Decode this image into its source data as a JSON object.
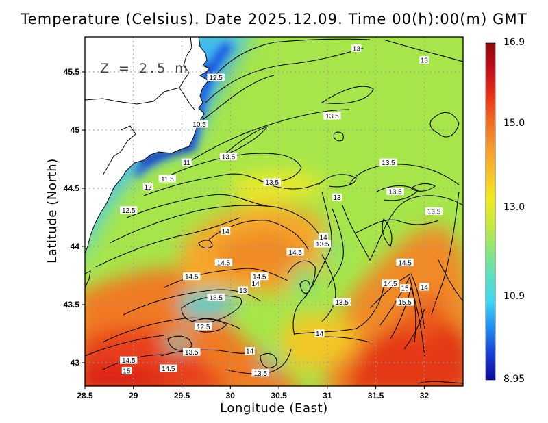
{
  "title": "Temperature (Celsius). Date 2025.12.09. Time 00(h):00(m) GMT",
  "depth_label": "Z = 2.5 m",
  "xlabel": "Longitude (East)",
  "ylabel": "Latitude (North)",
  "colors": {
    "ramp": [
      "#0a0a9c",
      "#1a3fd6",
      "#1f8cf0",
      "#3fd6f0",
      "#5de0c0",
      "#8ae67a",
      "#c6ea3c",
      "#f2ea1e",
      "#f7c12a",
      "#f59a2e",
      "#ef6a20",
      "#e83018",
      "#c0101a",
      "#8c0a0a"
    ],
    "land": "#ffffff",
    "coastline": "#000000",
    "grid": "#9a9a9a"
  },
  "chart_data": {
    "type": "heatmap",
    "xlim": [
      28.5,
      32.4
    ],
    "ylim": [
      42.8,
      45.8
    ],
    "x_ticks": [
      "28.5",
      "29",
      "29.5",
      "30",
      "30.5",
      "31",
      "31.5",
      "32"
    ],
    "y_ticks": [
      "43",
      "43.5",
      "44",
      "44.5",
      "45",
      "45.5"
    ],
    "x_tick_values": [
      28.5,
      29,
      29.5,
      30,
      30.5,
      31,
      31.5,
      32
    ],
    "y_tick_values": [
      43,
      43.5,
      44,
      44.5,
      45,
      45.5
    ],
    "grid": true,
    "colorbar": {
      "min": 8.95,
      "max": 16.9,
      "ticks": [
        "16.9",
        "15.0",
        "13.0",
        "10.9",
        "8.95"
      ],
      "tick_values": [
        16.9,
        15.0,
        13.0,
        10.9,
        8.95
      ]
    },
    "contour_labels": [
      {
        "text": "13",
        "lon": 31.3,
        "lat": 45.7
      },
      {
        "text": "13",
        "lon": 32.0,
        "lat": 45.6
      },
      {
        "text": "12.5",
        "lon": 29.85,
        "lat": 45.45
      },
      {
        "text": "13.5",
        "lon": 31.05,
        "lat": 45.12
      },
      {
        "text": "10.5",
        "lon": 29.68,
        "lat": 45.05
      },
      {
        "text": "13.5",
        "lon": 29.98,
        "lat": 44.77
      },
      {
        "text": "11",
        "lon": 29.55,
        "lat": 44.72
      },
      {
        "text": "13.5",
        "lon": 31.63,
        "lat": 44.72
      },
      {
        "text": "11.5",
        "lon": 29.35,
        "lat": 44.58
      },
      {
        "text": "13.5",
        "lon": 30.43,
        "lat": 44.55
      },
      {
        "text": "12",
        "lon": 29.15,
        "lat": 44.51
      },
      {
        "text": "13.5",
        "lon": 31.7,
        "lat": 44.47
      },
      {
        "text": "13",
        "lon": 31.1,
        "lat": 44.42
      },
      {
        "text": "12.5",
        "lon": 28.95,
        "lat": 44.31
      },
      {
        "text": "13.5",
        "lon": 32.1,
        "lat": 44.3
      },
      {
        "text": "14",
        "lon": 29.95,
        "lat": 44.13
      },
      {
        "text": "14",
        "lon": 30.96,
        "lat": 44.08
      },
      {
        "text": "13.5",
        "lon": 30.95,
        "lat": 44.02
      },
      {
        "text": "14.5",
        "lon": 30.67,
        "lat": 43.95
      },
      {
        "text": "14.5",
        "lon": 29.93,
        "lat": 43.86
      },
      {
        "text": "14.5",
        "lon": 31.8,
        "lat": 43.86
      },
      {
        "text": "14.5",
        "lon": 29.6,
        "lat": 43.74
      },
      {
        "text": "14.5",
        "lon": 30.3,
        "lat": 43.74
      },
      {
        "text": "14",
        "lon": 30.26,
        "lat": 43.68
      },
      {
        "text": "14.5",
        "lon": 31.65,
        "lat": 43.68
      },
      {
        "text": "14",
        "lon": 32.0,
        "lat": 43.65
      },
      {
        "text": "13",
        "lon": 30.13,
        "lat": 43.62
      },
      {
        "text": "15",
        "lon": 31.8,
        "lat": 43.64
      },
      {
        "text": "13.5",
        "lon": 29.85,
        "lat": 43.56
      },
      {
        "text": "13.5",
        "lon": 31.15,
        "lat": 43.52
      },
      {
        "text": "15.5",
        "lon": 31.8,
        "lat": 43.52
      },
      {
        "text": "12.5",
        "lon": 29.72,
        "lat": 43.31
      },
      {
        "text": "14",
        "lon": 30.92,
        "lat": 43.25
      },
      {
        "text": "13.5",
        "lon": 29.6,
        "lat": 43.09
      },
      {
        "text": "14",
        "lon": 30.2,
        "lat": 43.1
      },
      {
        "text": "14.5",
        "lon": 28.95,
        "lat": 43.02
      },
      {
        "text": "15",
        "lon": 28.93,
        "lat": 42.93
      },
      {
        "text": "14.5",
        "lon": 29.36,
        "lat": 42.95
      },
      {
        "text": "13.5",
        "lon": 30.31,
        "lat": 42.91
      }
    ]
  }
}
